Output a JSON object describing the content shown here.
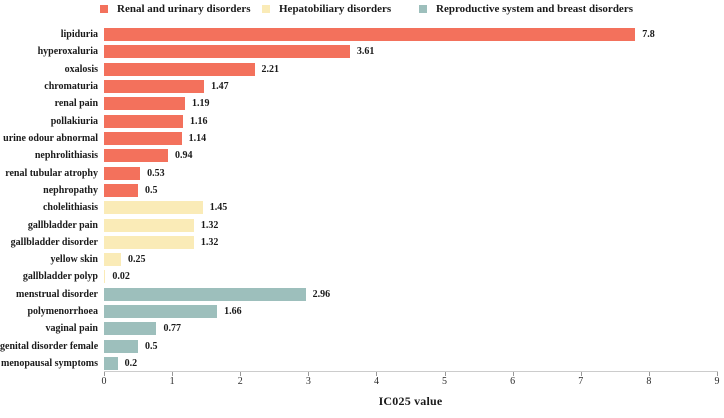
{
  "figure": {
    "xlabel": "IC025 value"
  },
  "chart_data": {
    "type": "bar",
    "orientation": "horizontal",
    "title": "",
    "xlabel": "IC025 value",
    "ylabel": "",
    "xlim": [
      0,
      9
    ],
    "xticks": [
      0,
      1,
      2,
      3,
      4,
      5,
      6,
      7,
      8,
      9
    ],
    "grid": false,
    "legend_position": "top",
    "legend": [
      {
        "label": "Renal and urinary disorders",
        "color": "#F3715C"
      },
      {
        "label": "Hepatobiliary disorders",
        "color": "#FAEBB7"
      },
      {
        "label": "Reproductive system and breast disorders",
        "color": "#9DBFBC"
      }
    ],
    "bars": [
      {
        "label": "lipiduria",
        "value": 7.8,
        "group": 0
      },
      {
        "label": "hyperoxaluria",
        "value": 3.61,
        "group": 0
      },
      {
        "label": "oxalosis",
        "value": 2.21,
        "group": 0
      },
      {
        "label": "chromaturia",
        "value": 1.47,
        "group": 0
      },
      {
        "label": "renal pain",
        "value": 1.19,
        "group": 0
      },
      {
        "label": "pollakiuria",
        "value": 1.16,
        "group": 0
      },
      {
        "label": "urine odour abnormal",
        "value": 1.14,
        "group": 0
      },
      {
        "label": "nephrolithiasis",
        "value": 0.94,
        "group": 0
      },
      {
        "label": "renal tubular atrophy",
        "value": 0.53,
        "group": 0
      },
      {
        "label": "nephropathy",
        "value": 0.5,
        "group": 0
      },
      {
        "label": "cholelithiasis",
        "value": 1.45,
        "group": 1
      },
      {
        "label": "gallbladder pain",
        "value": 1.32,
        "group": 1
      },
      {
        "label": "gallbladder disorder",
        "value": 1.32,
        "group": 1
      },
      {
        "label": "yellow skin",
        "value": 0.25,
        "group": 1
      },
      {
        "label": "gallbladder polyp",
        "value": 0.02,
        "group": 1
      },
      {
        "label": "menstrual disorder",
        "value": 2.96,
        "group": 2
      },
      {
        "label": "polymenorrhoea",
        "value": 1.66,
        "group": 2
      },
      {
        "label": "vaginal pain",
        "value": 0.77,
        "group": 2
      },
      {
        "label": "genital disorder female",
        "value": 0.5,
        "group": 2
      },
      {
        "label": "menopausal symptoms",
        "value": 0.2,
        "group": 2
      }
    ]
  }
}
